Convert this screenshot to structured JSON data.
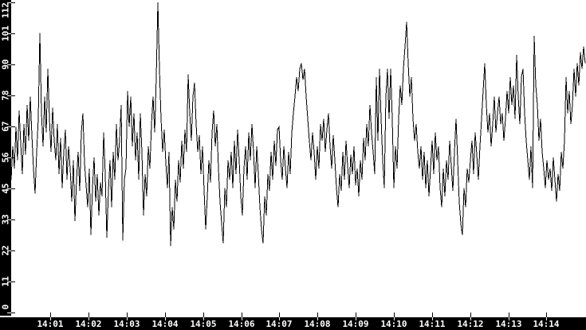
{
  "colors": {
    "background": "#ffffff",
    "axis_bar": "#000000",
    "line": "#000000",
    "tick_text": "#ffffff"
  },
  "chart_data": {
    "type": "line",
    "title": "",
    "xlabel": "",
    "ylabel": "",
    "grid": false,
    "legend": false,
    "y_axis": {
      "min": 0,
      "max": 112,
      "tick_labels": [
        "112",
        "101",
        "90",
        "78",
        "67",
        "56",
        "45",
        "33",
        "22",
        "11",
        "0"
      ]
    },
    "x_axis": {
      "tick_labels": [
        "14:01",
        "14:02",
        "14:03",
        "14:04",
        "14:05",
        "14:06",
        "14:07",
        "14:08",
        "14:09",
        "14:10",
        "14:11",
        "14:12",
        "14:13",
        "14:14"
      ]
    },
    "series": [
      {
        "values": [
          48,
          60,
          52,
          67,
          55,
          73,
          61,
          50,
          68,
          57,
          75,
          62,
          78,
          64,
          52,
          43,
          58,
          70,
          101,
          72,
          60,
          78,
          65,
          88,
          70,
          58,
          74,
          62,
          55,
          68,
          50,
          63,
          45,
          58,
          66,
          48,
          60,
          52,
          40,
          55,
          33,
          48,
          58,
          44,
          65,
          72,
          54,
          46,
          38,
          52,
          28,
          45,
          56,
          40,
          50,
          35,
          47,
          42,
          65,
          50,
          27,
          44,
          55,
          38,
          58,
          48,
          68,
          55,
          62,
          75,
          26,
          48,
          52,
          80,
          67,
          78,
          60,
          72,
          55,
          65,
          48,
          72,
          58,
          35,
          50,
          42,
          60,
          52,
          68,
          78,
          65,
          85,
          112,
          88,
          70,
          58,
          66,
          54,
          45,
          58,
          24,
          38,
          30,
          48,
          40,
          55,
          47,
          62,
          52,
          66,
          58,
          86,
          72,
          62,
          78,
          83,
          68,
          58,
          64,
          50,
          60,
          44,
          30,
          42,
          55,
          47,
          65,
          73,
          60,
          68,
          52,
          40,
          32,
          25,
          45,
          38,
          55,
          48,
          58,
          45,
          62,
          50,
          66,
          55,
          42,
          35,
          52,
          60,
          48,
          65,
          55,
          68,
          58,
          45,
          60,
          50,
          38,
          30,
          25,
          42,
          35,
          50,
          44,
          58,
          48,
          62,
          53,
          66,
          67,
          55,
          48,
          60,
          52,
          45,
          58,
          50,
          65,
          72,
          78,
          85,
          80,
          88,
          90,
          84,
          88,
          78,
          70,
          62,
          55,
          65,
          58,
          48,
          60,
          52,
          68,
          62,
          70,
          58,
          66,
          72,
          60,
          52,
          64,
          55,
          45,
          38,
          50,
          44,
          58,
          48,
          62,
          53,
          45,
          57,
          50,
          60,
          46,
          52,
          42,
          55,
          48,
          63,
          55,
          68,
          60,
          75,
          65,
          58,
          50,
          85,
          62,
          88,
          70,
          55,
          45,
          78,
          88,
          70,
          88,
          70,
          45,
          60,
          52,
          70,
          82,
          75,
          88,
          96,
          105,
          90,
          78,
          85,
          70,
          62,
          68,
          58,
          52,
          60,
          48,
          58,
          45,
          55,
          42,
          52,
          62,
          50,
          65,
          55,
          60,
          45,
          38,
          52,
          42,
          55,
          48,
          62,
          53,
          44,
          58,
          70,
          55,
          40,
          32,
          28,
          45,
          38,
          52,
          47,
          55,
          62,
          50,
          65,
          57,
          48,
          60,
          70,
          80,
          90,
          75,
          65,
          72,
          60,
          68,
          78,
          65,
          72,
          78,
          68,
          72,
          62,
          70,
          80,
          72,
          85,
          75,
          82,
          70,
          93,
          78,
          68,
          85,
          88,
          72,
          62,
          55,
          48,
          60,
          45,
          100,
          82,
          75,
          62,
          70,
          58,
          52,
          45,
          55,
          48,
          52,
          44,
          56,
          48,
          40,
          50,
          44,
          58,
          52,
          62,
          85,
          72,
          80,
          68,
          75,
          88,
          78,
          90,
          82,
          94,
          88,
          96,
          90
        ]
      }
    ]
  }
}
